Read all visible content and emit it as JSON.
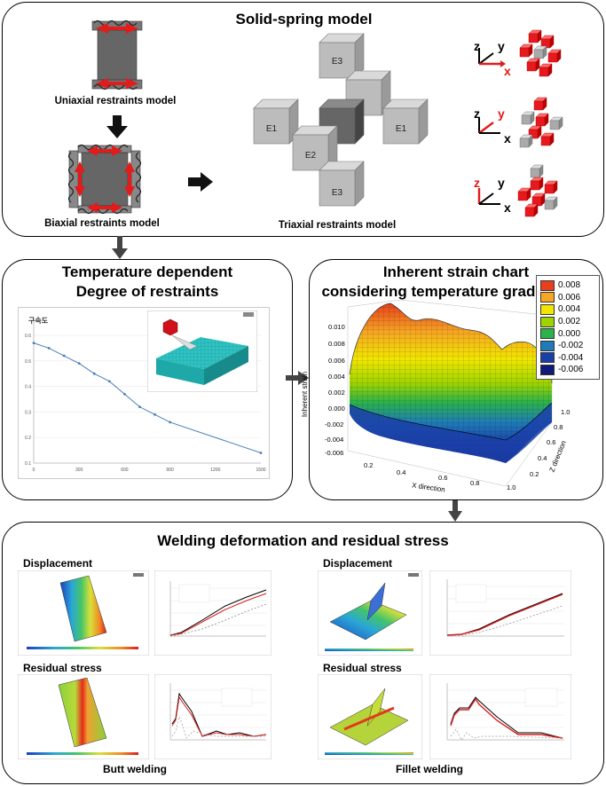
{
  "panels": {
    "solid_spring": {
      "title": "Solid-spring model",
      "uniaxial_label": "Uniaxial restraints model",
      "biaxial_label": "Biaxial restraints model",
      "triaxial_label": "Triaxial restraints model",
      "cube_labels": {
        "e3_top": "E3",
        "e1_left": "E1",
        "e1_right": "E1",
        "e2": "E2",
        "e3_bottom": "E3"
      },
      "axis_labels": {
        "z": "z",
        "y": "y",
        "x": "x"
      }
    },
    "temperature": {
      "title_line1": "Temperature dependent",
      "title_line2": "Degree of restraints",
      "chart_label": "구속도"
    },
    "inherent": {
      "title_line1": "Inherent strain chart",
      "title_line2": "considering temperature gradient",
      "zlabel": "Inherent strain",
      "xlabel": "X direction",
      "ylabel": "Z direction",
      "legend": [
        "0.008",
        "0.006",
        "0.004",
        "0.002",
        "0.000",
        "-0.002",
        "-0.004",
        "-0.006"
      ],
      "legend_colors": [
        "#e8401c",
        "#f5a623",
        "#f2e600",
        "#9fd400",
        "#2bb24c",
        "#1f7ab8",
        "#1b3fa8",
        "#101a78"
      ],
      "zticks": [
        "0.010",
        "0.008",
        "0.006",
        "0.004",
        "0.002",
        "0.000",
        "-0.002",
        "-0.004",
        "-0.006"
      ],
      "xticks": [
        "0.2",
        "0.4",
        "0.6",
        "0.8",
        "1.0"
      ],
      "yticks": [
        "1.0",
        "0.8",
        "0.6",
        "0.4",
        "0.2"
      ]
    },
    "welding": {
      "title": "Welding deformation and residual stress",
      "left_displacement": "Displacement",
      "left_residual": "Residual stress",
      "right_displacement": "Displacement",
      "right_residual": "Residual stress",
      "butt": "Butt welding",
      "fillet": "Fillet welding"
    }
  },
  "chart_data": [
    {
      "type": "line",
      "title": "구속도",
      "x": [
        0,
        100,
        200,
        300,
        400,
        500,
        600,
        700,
        800,
        900,
        1500
      ],
      "series": [
        {
          "values": [
            0.57,
            0.55,
            0.52,
            0.49,
            0.45,
            0.42,
            0.37,
            0.32,
            0.29,
            0.26,
            0.14
          ]
        }
      ],
      "xticks": [
        "0",
        "300",
        "600",
        "900",
        "1200",
        "1500"
      ],
      "yticks": [
        "0.1",
        "0.2",
        "0.3",
        "0.4",
        "0.5",
        "0.6"
      ],
      "xlim": [
        0,
        1500
      ],
      "ylim": [
        0.1,
        0.6
      ]
    }
  ]
}
